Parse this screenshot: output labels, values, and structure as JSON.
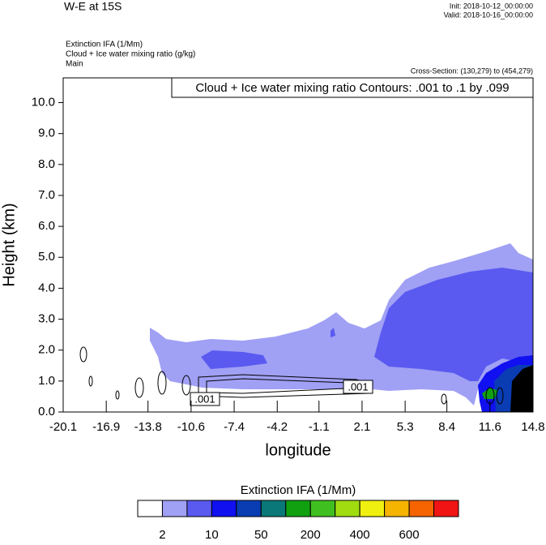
{
  "chart_data": {
    "type": "cross-section",
    "title": "W-E at 15S",
    "init": "Init: 2018-10-12_00:00:00",
    "valid": "Valid: 2018-10-16_00:00:00",
    "fields": [
      "Extinction IFA   (1/Mm)",
      "Cloud + Ice water mixing ratio   (g/kg)",
      "Main"
    ],
    "cross_section": "Cross-Section: (130,279) to (454,279)",
    "contour_info": "Cloud + Ice water mixing ratio Contours: .001 to .1 by .099",
    "contour_labels": [
      ".001",
      ".001"
    ],
    "x_label": "longitude",
    "y_label": "Height (km)",
    "xlim": [
      -20.1,
      14.8
    ],
    "xticks": [
      -20.1,
      -16.9,
      -13.8,
      -10.6,
      -7.4,
      -4.2,
      -1.1,
      2.1,
      5.3,
      8.4,
      11.6,
      14.8
    ],
    "ylim": [
      0,
      10.8
    ],
    "yticks": [
      {
        "value": 0,
        "label": "0.0"
      },
      {
        "value": 1,
        "label": "1.0"
      },
      {
        "value": 2,
        "label": "2.0"
      },
      {
        "value": 3,
        "label": "3.0"
      },
      {
        "value": 4,
        "label": "4.0"
      },
      {
        "value": 5,
        "label": "5.0"
      },
      {
        "value": 6,
        "label": "6.0"
      },
      {
        "value": 7,
        "label": "7.0"
      },
      {
        "value": 8,
        "label": "8.0"
      },
      {
        "value": 9,
        "label": "9.0"
      },
      {
        "value": 10,
        "label": "10.0"
      }
    ],
    "colorbar": {
      "title": "Extinction IFA  (1/Mm)",
      "colors": [
        "#ffffff",
        "#a0a0f5",
        "#5a5af0",
        "#1010f0",
        "#0a3cb4",
        "#0a7878",
        "#10a010",
        "#40c020",
        "#a0dc10",
        "#f0f010",
        "#f5b400",
        "#f56400",
        "#f01414"
      ],
      "labels": [
        2,
        10,
        50,
        200,
        400,
        600
      ]
    }
  }
}
